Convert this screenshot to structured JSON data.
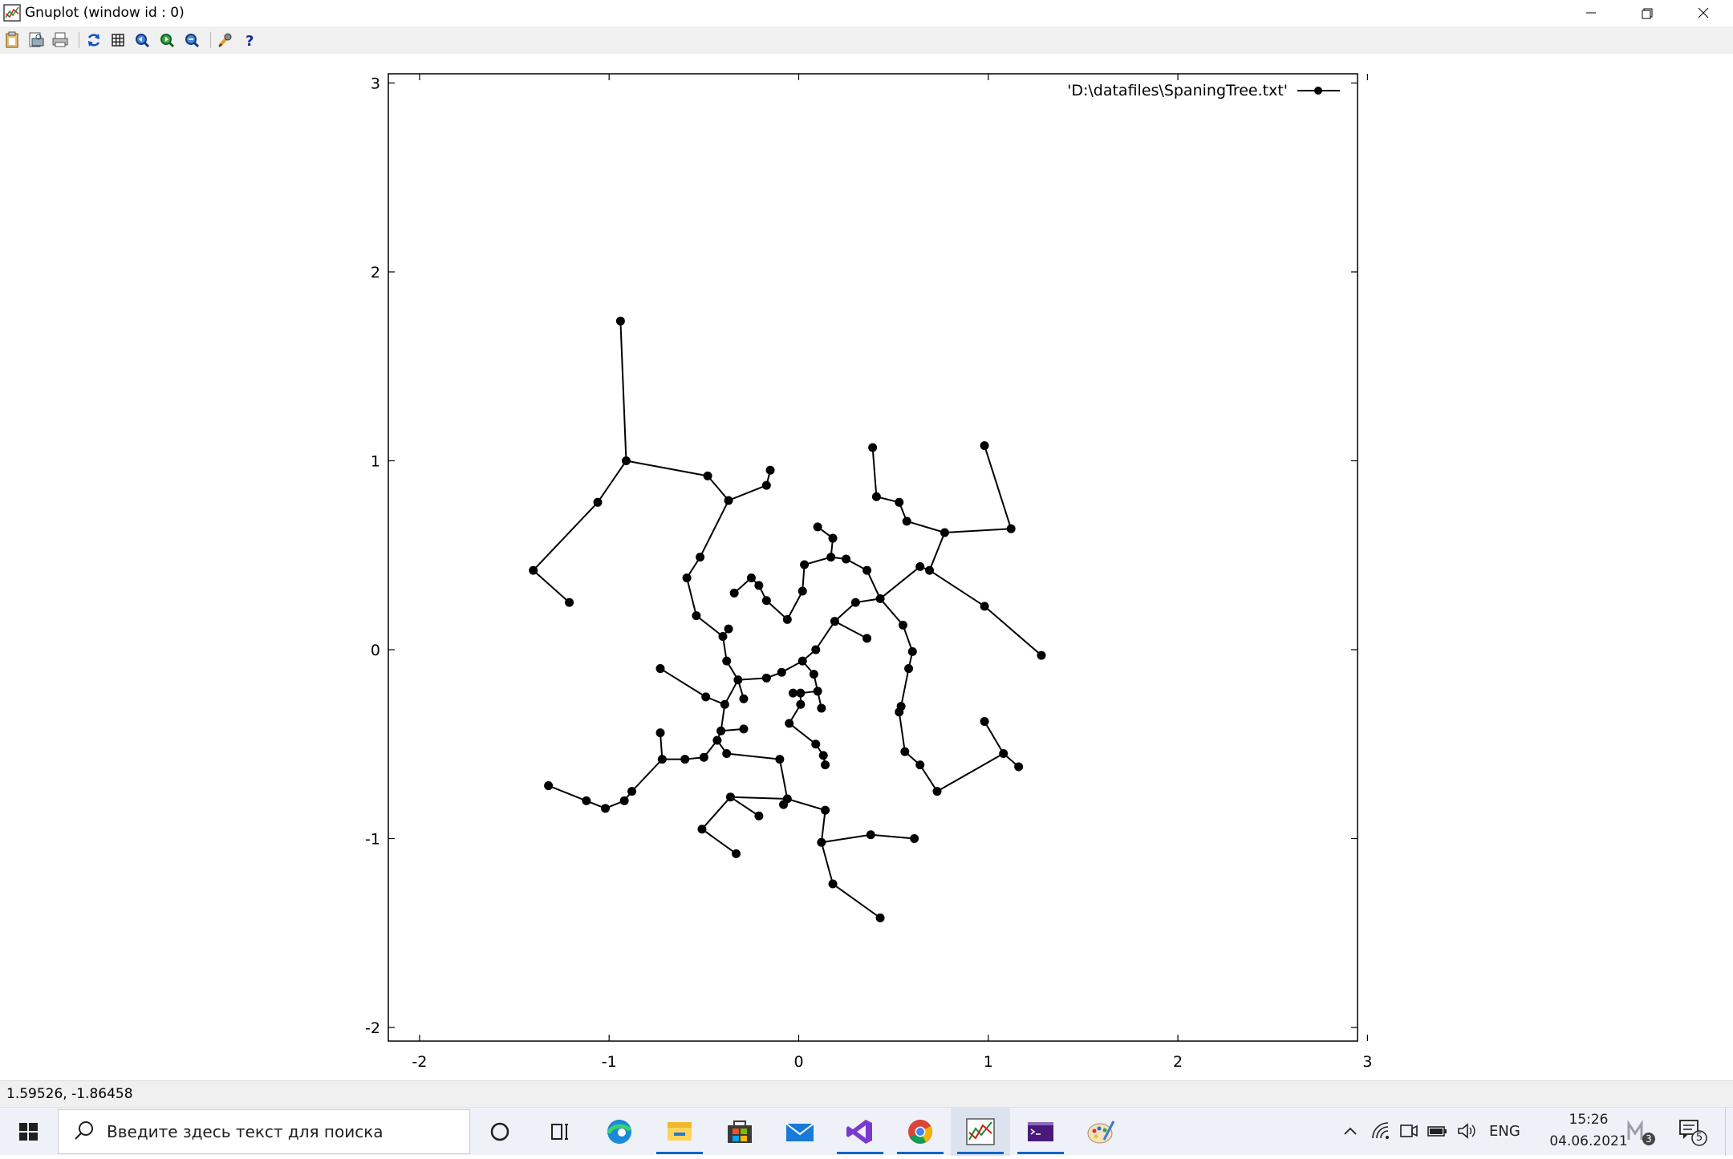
{
  "window": {
    "title": "Gnuplot (window id : 0)"
  },
  "toolbar": {
    "icons": [
      "clipboard-icon",
      "print-preview-icon",
      "print-icon",
      "replot-icon",
      "grid-icon",
      "zoom-previous-icon",
      "zoom-next-icon",
      "unzoom-icon",
      "options-icon",
      "help-icon"
    ]
  },
  "chart_data": {
    "type": "line",
    "title": "",
    "xlabel": "",
    "ylabel": "",
    "xlim": [
      -2.1,
      3
    ],
    "ylim": [
      -2.05,
      3.05
    ],
    "xticks": [
      "-2",
      "-1",
      "0",
      "1",
      "2",
      "3"
    ],
    "yticks": [
      "3",
      "2",
      "1",
      "0",
      "-1",
      "-2"
    ],
    "grid": false,
    "legend_position": "top-right",
    "legend": {
      "label": "'D:\\datafiles\\SpaningTree.txt'"
    },
    "series": [
      {
        "marker": "filled-circle",
        "color": "#000000",
        "segments": [
          [
            [
              -0.94,
              1.74
            ],
            [
              -0.91,
              1.0
            ]
          ],
          [
            [
              -0.91,
              1.0
            ],
            [
              -1.06,
              0.78
            ]
          ],
          [
            [
              -1.06,
              0.78
            ],
            [
              -1.4,
              0.42
            ]
          ],
          [
            [
              -1.4,
              0.42
            ],
            [
              -1.21,
              0.25
            ]
          ],
          [
            [
              -0.91,
              1.0
            ],
            [
              -0.48,
              0.92
            ]
          ],
          [
            [
              -0.48,
              0.92
            ],
            [
              -0.37,
              0.79
            ]
          ],
          [
            [
              -0.37,
              0.79
            ],
            [
              -0.17,
              0.87
            ]
          ],
          [
            [
              -0.17,
              0.87
            ],
            [
              -0.15,
              0.95
            ]
          ],
          [
            [
              -0.37,
              0.79
            ],
            [
              -0.52,
              0.49
            ]
          ],
          [
            [
              -0.52,
              0.49
            ],
            [
              -0.59,
              0.38
            ]
          ],
          [
            [
              -0.59,
              0.38
            ],
            [
              -0.54,
              0.18
            ]
          ],
          [
            [
              -0.54,
              0.18
            ],
            [
              -0.4,
              0.07
            ]
          ],
          [
            [
              -0.4,
              0.07
            ],
            [
              -0.37,
              0.11
            ]
          ],
          [
            [
              -0.4,
              0.07
            ],
            [
              -0.38,
              -0.06
            ]
          ],
          [
            [
              -0.38,
              -0.06
            ],
            [
              -0.32,
              -0.16
            ]
          ],
          [
            [
              -0.32,
              -0.16
            ],
            [
              -0.29,
              -0.26
            ]
          ],
          [
            [
              -0.32,
              -0.16
            ],
            [
              -0.39,
              -0.29
            ]
          ],
          [
            [
              -0.39,
              -0.29
            ],
            [
              -0.49,
              -0.25
            ]
          ],
          [
            [
              -0.49,
              -0.25
            ],
            [
              -0.73,
              -0.1
            ]
          ],
          [
            [
              -0.39,
              -0.29
            ],
            [
              -0.41,
              -0.43
            ]
          ],
          [
            [
              -0.41,
              -0.43
            ],
            [
              -0.29,
              -0.42
            ]
          ],
          [
            [
              -0.41,
              -0.43
            ],
            [
              -0.43,
              -0.48
            ]
          ],
          [
            [
              -0.43,
              -0.48
            ],
            [
              -0.5,
              -0.57
            ]
          ],
          [
            [
              -0.5,
              -0.57
            ],
            [
              -0.6,
              -0.58
            ]
          ],
          [
            [
              -0.6,
              -0.58
            ],
            [
              -0.72,
              -0.58
            ]
          ],
          [
            [
              -0.72,
              -0.58
            ],
            [
              -0.73,
              -0.44
            ]
          ],
          [
            [
              -0.72,
              -0.58
            ],
            [
              -0.88,
              -0.75
            ]
          ],
          [
            [
              -0.88,
              -0.75
            ],
            [
              -0.92,
              -0.8
            ]
          ],
          [
            [
              -0.92,
              -0.8
            ],
            [
              -1.02,
              -0.84
            ]
          ],
          [
            [
              -1.02,
              -0.84
            ],
            [
              -1.12,
              -0.8
            ]
          ],
          [
            [
              -1.12,
              -0.8
            ],
            [
              -1.32,
              -0.72
            ]
          ],
          [
            [
              -0.43,
              -0.48
            ],
            [
              -0.38,
              -0.55
            ]
          ],
          [
            [
              -0.38,
              -0.55
            ],
            [
              -0.1,
              -0.58
            ]
          ],
          [
            [
              -0.1,
              -0.58
            ],
            [
              -0.06,
              -0.79
            ]
          ],
          [
            [
              -0.06,
              -0.79
            ],
            [
              -0.36,
              -0.78
            ]
          ],
          [
            [
              -0.36,
              -0.78
            ],
            [
              -0.21,
              -0.88
            ]
          ],
          [
            [
              -0.36,
              -0.78
            ],
            [
              -0.51,
              -0.95
            ]
          ],
          [
            [
              -0.51,
              -0.95
            ],
            [
              -0.33,
              -1.08
            ]
          ],
          [
            [
              -0.06,
              -0.79
            ],
            [
              -0.08,
              -0.82
            ]
          ],
          [
            [
              -0.06,
              -0.79
            ],
            [
              0.14,
              -0.85
            ]
          ],
          [
            [
              0.14,
              -0.85
            ],
            [
              0.12,
              -1.02
            ]
          ],
          [
            [
              0.12,
              -1.02
            ],
            [
              0.38,
              -0.98
            ]
          ],
          [
            [
              0.38,
              -0.98
            ],
            [
              0.61,
              -1.0
            ]
          ],
          [
            [
              0.12,
              -1.02
            ],
            [
              0.18,
              -1.24
            ]
          ],
          [
            [
              0.18,
              -1.24
            ],
            [
              0.43,
              -1.42
            ]
          ],
          [
            [
              -0.32,
              -0.16
            ],
            [
              -0.17,
              -0.15
            ]
          ],
          [
            [
              -0.17,
              -0.15
            ],
            [
              -0.09,
              -0.12
            ]
          ],
          [
            [
              -0.09,
              -0.12
            ],
            [
              0.02,
              -0.06
            ]
          ],
          [
            [
              0.02,
              -0.06
            ],
            [
              0.08,
              -0.13
            ]
          ],
          [
            [
              0.08,
              -0.13
            ],
            [
              0.1,
              -0.22
            ]
          ],
          [
            [
              0.1,
              -0.22
            ],
            [
              0.12,
              -0.31
            ]
          ],
          [
            [
              0.1,
              -0.22
            ],
            [
              0.01,
              -0.23
            ]
          ],
          [
            [
              0.01,
              -0.23
            ],
            [
              -0.03,
              -0.23
            ]
          ],
          [
            [
              0.01,
              -0.23
            ],
            [
              0.01,
              -0.29
            ]
          ],
          [
            [
              0.01,
              -0.29
            ],
            [
              -0.05,
              -0.39
            ]
          ],
          [
            [
              -0.05,
              -0.39
            ],
            [
              0.09,
              -0.5
            ]
          ],
          [
            [
              0.09,
              -0.5
            ],
            [
              0.13,
              -0.56
            ]
          ],
          [
            [
              0.13,
              -0.56
            ],
            [
              0.14,
              -0.61
            ]
          ],
          [
            [
              0.02,
              -0.06
            ],
            [
              0.09,
              0.0
            ]
          ],
          [
            [
              0.09,
              0.0
            ],
            [
              0.19,
              0.15
            ]
          ],
          [
            [
              0.19,
              0.15
            ],
            [
              0.36,
              0.06
            ]
          ],
          [
            [
              0.19,
              0.15
            ],
            [
              0.3,
              0.25
            ]
          ],
          [
            [
              0.3,
              0.25
            ],
            [
              0.43,
              0.27
            ]
          ],
          [
            [
              0.43,
              0.27
            ],
            [
              0.36,
              0.42
            ]
          ],
          [
            [
              0.36,
              0.42
            ],
            [
              0.25,
              0.48
            ]
          ],
          [
            [
              0.25,
              0.48
            ],
            [
              0.17,
              0.49
            ]
          ],
          [
            [
              0.17,
              0.49
            ],
            [
              0.18,
              0.59
            ]
          ],
          [
            [
              0.18,
              0.59
            ],
            [
              0.1,
              0.65
            ]
          ],
          [
            [
              0.17,
              0.49
            ],
            [
              0.03,
              0.45
            ]
          ],
          [
            [
              0.03,
              0.45
            ],
            [
              0.02,
              0.31
            ]
          ],
          [
            [
              0.02,
              0.31
            ],
            [
              -0.06,
              0.16
            ]
          ],
          [
            [
              -0.06,
              0.16
            ],
            [
              -0.17,
              0.26
            ]
          ],
          [
            [
              -0.17,
              0.26
            ],
            [
              -0.21,
              0.34
            ]
          ],
          [
            [
              -0.21,
              0.34
            ],
            [
              -0.25,
              0.38
            ]
          ],
          [
            [
              -0.25,
              0.38
            ],
            [
              -0.34,
              0.3
            ]
          ],
          [
            [
              0.43,
              0.27
            ],
            [
              0.64,
              0.44
            ]
          ],
          [
            [
              0.64,
              0.44
            ],
            [
              0.69,
              0.42
            ]
          ],
          [
            [
              0.69,
              0.42
            ],
            [
              0.77,
              0.62
            ]
          ],
          [
            [
              0.77,
              0.62
            ],
            [
              0.57,
              0.68
            ]
          ],
          [
            [
              0.57,
              0.68
            ],
            [
              0.53,
              0.78
            ]
          ],
          [
            [
              0.53,
              0.78
            ],
            [
              0.41,
              0.81
            ]
          ],
          [
            [
              0.41,
              0.81
            ],
            [
              0.39,
              1.07
            ]
          ],
          [
            [
              0.77,
              0.62
            ],
            [
              1.12,
              0.64
            ]
          ],
          [
            [
              1.12,
              0.64
            ],
            [
              0.98,
              1.08
            ]
          ],
          [
            [
              0.69,
              0.42
            ],
            [
              0.98,
              0.23
            ]
          ],
          [
            [
              0.98,
              0.23
            ],
            [
              1.28,
              -0.03
            ]
          ],
          [
            [
              0.43,
              0.27
            ],
            [
              0.55,
              0.13
            ]
          ],
          [
            [
              0.55,
              0.13
            ],
            [
              0.6,
              -0.01
            ]
          ],
          [
            [
              0.6,
              -0.01
            ],
            [
              0.58,
              -0.1
            ]
          ],
          [
            [
              0.58,
              -0.1
            ],
            [
              0.54,
              -0.3
            ]
          ],
          [
            [
              0.54,
              -0.3
            ],
            [
              0.53,
              -0.33
            ]
          ],
          [
            [
              0.53,
              -0.33
            ],
            [
              0.56,
              -0.54
            ]
          ],
          [
            [
              0.56,
              -0.54
            ],
            [
              0.64,
              -0.61
            ]
          ],
          [
            [
              0.64,
              -0.61
            ],
            [
              0.73,
              -0.75
            ]
          ],
          [
            [
              0.73,
              -0.75
            ],
            [
              1.08,
              -0.55
            ]
          ],
          [
            [
              1.08,
              -0.55
            ],
            [
              1.16,
              -0.62
            ]
          ],
          [
            [
              1.08,
              -0.55
            ],
            [
              0.98,
              -0.38
            ]
          ]
        ]
      }
    ]
  },
  "status": {
    "coords": "1.59526, -1.86458"
  },
  "taskbar": {
    "search_placeholder": "Введите здесь текст для поиска",
    "apps": [
      "cortana-icon",
      "task-view-icon",
      "edge-icon",
      "file-explorer-icon",
      "store-icon",
      "mail-icon",
      "visual-studio-icon",
      "chrome-icon",
      "gnuplot-icon",
      "terminal-icon",
      "paint-icon"
    ],
    "lang": "ENG",
    "time": "15:26",
    "date": "04.06.2021",
    "badge_meet": "3",
    "badge_notifications": "5"
  }
}
